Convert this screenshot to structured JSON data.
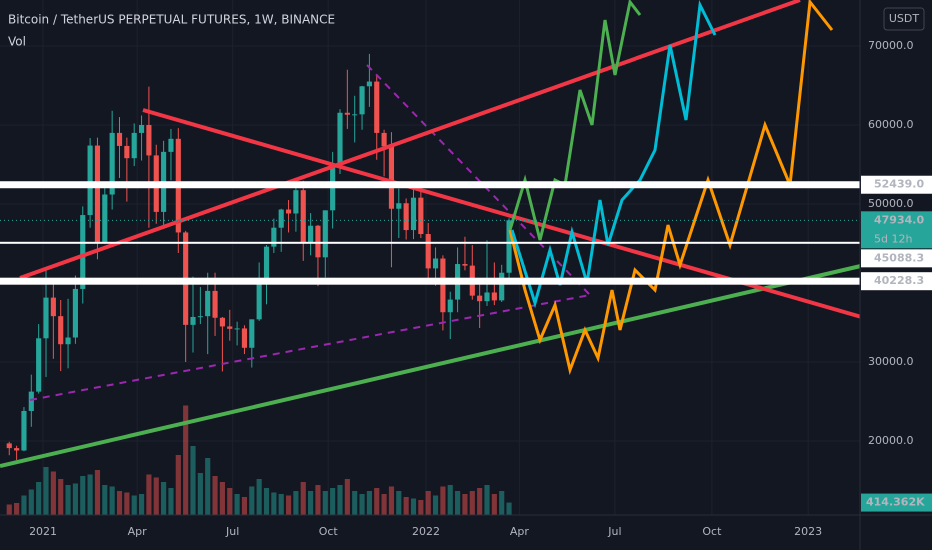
{
  "chart_data": {
    "type": "candlestick",
    "title": "Bitcoin / TetherUS PERPETUAL FUTURES, 1W, BINANCE",
    "volume_title": "Vol",
    "currency": "USDT",
    "up_color": "#26a69a",
    "down_color": "#ef5350",
    "x": [
      -5,
      -4,
      -3,
      -2,
      -1,
      0,
      1,
      2,
      3,
      4,
      5,
      6,
      7,
      8,
      9,
      10,
      11,
      12,
      13,
      14,
      15,
      16,
      17,
      18,
      19,
      20,
      21,
      22,
      23,
      24,
      25,
      26,
      27,
      28,
      29,
      30,
      31,
      32,
      33,
      34,
      35,
      36,
      37,
      38,
      39,
      40,
      41,
      42,
      43,
      44,
      45,
      46,
      47,
      48,
      49,
      50,
      51,
      52,
      53,
      54,
      55,
      56,
      57,
      58,
      59,
      60,
      61,
      62,
      63
    ],
    "open": [
      19700,
      19100,
      18800,
      23800,
      26250,
      33000,
      38150,
      35800,
      32250,
      33100,
      39250,
      48600,
      57400,
      45200,
      51200,
      59000,
      57350,
      55800,
      59000,
      60000,
      56150,
      49000,
      56600,
      58250,
      46400,
      34700,
      35700,
      35800,
      39000,
      35600,
      34500,
      34200,
      34250,
      31800,
      35400,
      39850,
      44600,
      47000,
      49300,
      48800,
      51750,
      45100,
      47250,
      43250,
      49200,
      55000,
      61550,
      61300,
      61350,
      64900,
      65500,
      59000,
      57300,
      49400,
      50100,
      46700,
      50800,
      46200,
      41850,
      43100,
      36300,
      37900,
      42400,
      42200,
      38400,
      37700,
      38800,
      37800,
      41300
    ],
    "high": [
      19900,
      19400,
      24300,
      28400,
      34800,
      41950,
      40100,
      37850,
      38000,
      40950,
      49700,
      58350,
      58400,
      52650,
      61800,
      61000,
      58400,
      60200,
      61200,
      64850,
      57500,
      58000,
      59500,
      59600,
      46600,
      40800,
      39500,
      41300,
      41300,
      35700,
      36600,
      35100,
      34650,
      35400,
      42600,
      44800,
      48150,
      49400,
      50500,
      52900,
      52950,
      48850,
      47350,
      49200,
      56600,
      62000,
      67000,
      63700,
      64950,
      69000,
      66300,
      59400,
      59100,
      51950,
      50700,
      51900,
      52100,
      47600,
      44500,
      43500,
      38900,
      44500,
      45850,
      44800,
      39800,
      45400,
      42600,
      42300,
      48200
    ],
    "low": [
      18200,
      17600,
      18700,
      21800,
      26000,
      28100,
      30400,
      28850,
      29200,
      32300,
      37400,
      47000,
      43000,
      44950,
      49300,
      53300,
      50300,
      54800,
      55500,
      47000,
      47500,
      47000,
      53000,
      43800,
      30000,
      31200,
      34800,
      31000,
      33300,
      28800,
      32700,
      32100,
      31000,
      29300,
      35200,
      37300,
      43800,
      43950,
      46400,
      46500,
      42800,
      43500,
      39600,
      40700,
      46900,
      53800,
      59500,
      57800,
      59400,
      62300,
      55600,
      53500,
      42000,
      45700,
      45500,
      45550,
      45700,
      40500,
      39650,
      34000,
      32900,
      36300,
      41600,
      37900,
      34300,
      37100,
      37200,
      37600,
      40500
    ],
    "close": [
      19100,
      18800,
      23800,
      26250,
      33000,
      38150,
      35800,
      32250,
      33100,
      39250,
      48600,
      57400,
      45200,
      51200,
      59000,
      57350,
      55800,
      59000,
      60000,
      56150,
      49000,
      56600,
      58250,
      46400,
      34700,
      35700,
      35800,
      39000,
      35600,
      34500,
      34200,
      34250,
      31800,
      35400,
      39850,
      44600,
      47000,
      49300,
      48800,
      51750,
      45100,
      47250,
      43250,
      49200,
      55000,
      61550,
      61300,
      61350,
      64900,
      65500,
      59000,
      57300,
      49400,
      50100,
      46700,
      50800,
      46200,
      41850,
      43100,
      36300,
      37900,
      42400,
      42200,
      38400,
      37700,
      38800,
      37800,
      41300,
      47934
    ],
    "volume": [
      350000,
      400000,
      650000,
      850000,
      1100000,
      1600000,
      1450000,
      1200000,
      1000000,
      1050000,
      1300000,
      1350000,
      1500000,
      1000000,
      950000,
      800000,
      750000,
      650000,
      700000,
      1350000,
      1250000,
      1100000,
      900000,
      2000000,
      3650000,
      2300000,
      1400000,
      1900000,
      1300000,
      1100000,
      900000,
      700000,
      600000,
      950000,
      1200000,
      900000,
      750000,
      700000,
      650000,
      800000,
      1100000,
      800000,
      1000000,
      800000,
      900000,
      1000000,
      1200000,
      800000,
      700000,
      800000,
      900000,
      700000,
      950000,
      800000,
      600000,
      550000,
      500000,
      800000,
      650000,
      950000,
      1000000,
      800000,
      700000,
      800000,
      900000,
      1000000,
      700000,
      800000,
      414362
    ],
    "volume_last_label": "414.362K",
    "vlim": [
      0,
      4000000
    ],
    "xlim": [
      -6.26,
      110.75
    ],
    "xticks": [
      {
        "value": -0.4,
        "label": "2021"
      },
      {
        "value": 12.4,
        "label": "Apr"
      },
      {
        "value": 25.4,
        "label": "Jul"
      },
      {
        "value": 38.4,
        "label": "Oct"
      },
      {
        "value": 51.7,
        "label": "2022"
      },
      {
        "value": 64.4,
        "label": "Apr"
      },
      {
        "value": 77.4,
        "label": "Jul"
      },
      {
        "value": 90.6,
        "label": "Oct"
      },
      {
        "value": 103.7,
        "label": "2023"
      }
    ],
    "ylim": [
      10633,
      75823
    ],
    "yticks": [
      {
        "value": 20000,
        "label": "20000.0"
      },
      {
        "value": 30000,
        "label": "30000.0"
      },
      {
        "value": 40000,
        "label": "40000.0"
      },
      {
        "value": 50000,
        "label": "50000.0"
      },
      {
        "value": 60000,
        "label": "60000.0"
      },
      {
        "value": 70000,
        "label": "70000.0"
      }
    ],
    "grid": true,
    "last_price": {
      "value": 47934,
      "label": "47934.0"
    },
    "countdown": "5d 12h",
    "price_levels": [
      {
        "value": 52439,
        "label": "52439.0"
      },
      {
        "value": 45088.3,
        "label": "45088.3"
      },
      {
        "value": 40228.3,
        "label": "40228.3"
      }
    ]
  }
}
